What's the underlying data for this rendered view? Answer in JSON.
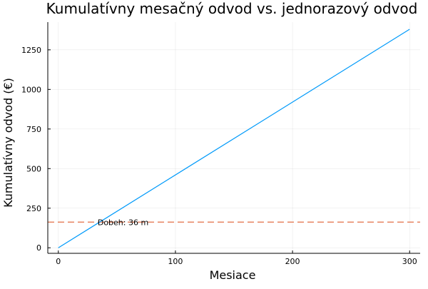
{
  "chart_data": {
    "type": "line",
    "title": "Kumulatívny mesačný odvod vs. jednorazový odvod",
    "xlabel": "Mesiace",
    "ylabel": "Kumulatívny odvod (€)",
    "xlim": [
      -9,
      309
    ],
    "ylim": [
      -35,
      1425
    ],
    "xticks": [
      0,
      100,
      200,
      300
    ],
    "xtick_labels": [
      "0",
      "100",
      "200",
      "300"
    ],
    "yticks": [
      0,
      250,
      500,
      750,
      1000,
      1250
    ],
    "ytick_labels": [
      "0",
      "250",
      "500",
      "750",
      "1000",
      "1250"
    ],
    "grid": true,
    "legend": "none",
    "series": [
      {
        "x": [
          0,
          300
        ],
        "y": [
          0,
          1380
        ],
        "color": "#009AFA",
        "style": "solid"
      }
    ],
    "hline": {
      "y": 162,
      "color": "#E26F46",
      "style": "dashed"
    },
    "annotation": {
      "text": "Dobeh: 36 m",
      "x": 36,
      "y": 162
    }
  }
}
